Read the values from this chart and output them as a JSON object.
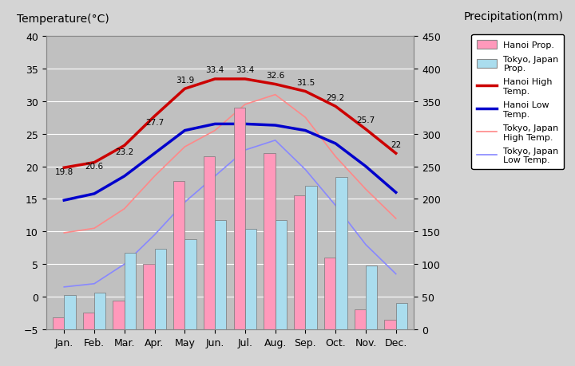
{
  "months": [
    "Jan.",
    "Feb.",
    "Mar.",
    "Apr.",
    "May",
    "Jun.",
    "Jul.",
    "Aug.",
    "Sep.",
    "Oct.",
    "Nov.",
    "Dec."
  ],
  "hanoi_high": [
    19.8,
    20.6,
    23.2,
    27.7,
    31.9,
    33.4,
    33.4,
    32.6,
    31.5,
    29.2,
    25.7,
    22.0
  ],
  "hanoi_low": [
    14.8,
    15.8,
    18.5,
    22.0,
    25.5,
    26.5,
    26.5,
    26.3,
    25.5,
    23.5,
    20.0,
    16.0
  ],
  "tokyo_high": [
    9.8,
    10.5,
    13.5,
    18.5,
    23.0,
    25.5,
    29.5,
    31.0,
    27.5,
    21.5,
    16.5,
    12.0
  ],
  "tokyo_low": [
    1.5,
    2.0,
    5.0,
    9.5,
    14.5,
    18.5,
    22.5,
    24.0,
    19.5,
    14.0,
    8.0,
    3.5
  ],
  "hanoi_precip_mm": [
    18,
    26,
    44,
    100,
    228,
    265,
    340,
    270,
    205,
    110,
    30,
    15
  ],
  "tokyo_precip_mm": [
    52,
    56,
    118,
    124,
    138,
    168,
    154,
    168,
    220,
    234,
    98,
    40
  ],
  "hanoi_high_labels": [
    "19.8",
    "20.6",
    "23.2",
    "27.7",
    "31.9",
    "33.4",
    "33.4",
    "32.6",
    "31.5",
    "29.2",
    "25.7",
    "22"
  ],
  "temp_ylim": [
    -5,
    40
  ],
  "precip_ylim": [
    0,
    450
  ],
  "fig_bg_color": "#d4d4d4",
  "plot_bg_color": "#c0c0c0",
  "bar_hanoi_color": "#ff99bb",
  "bar_tokyo_color": "#aaddee",
  "line_hanoi_high_color": "#cc0000",
  "line_hanoi_low_color": "#0000cc",
  "line_tokyo_high_color": "#ff8888",
  "line_tokyo_low_color": "#8888ff",
  "title_left": "Temperature(°C)",
  "title_right": "Precipitation(mm)"
}
